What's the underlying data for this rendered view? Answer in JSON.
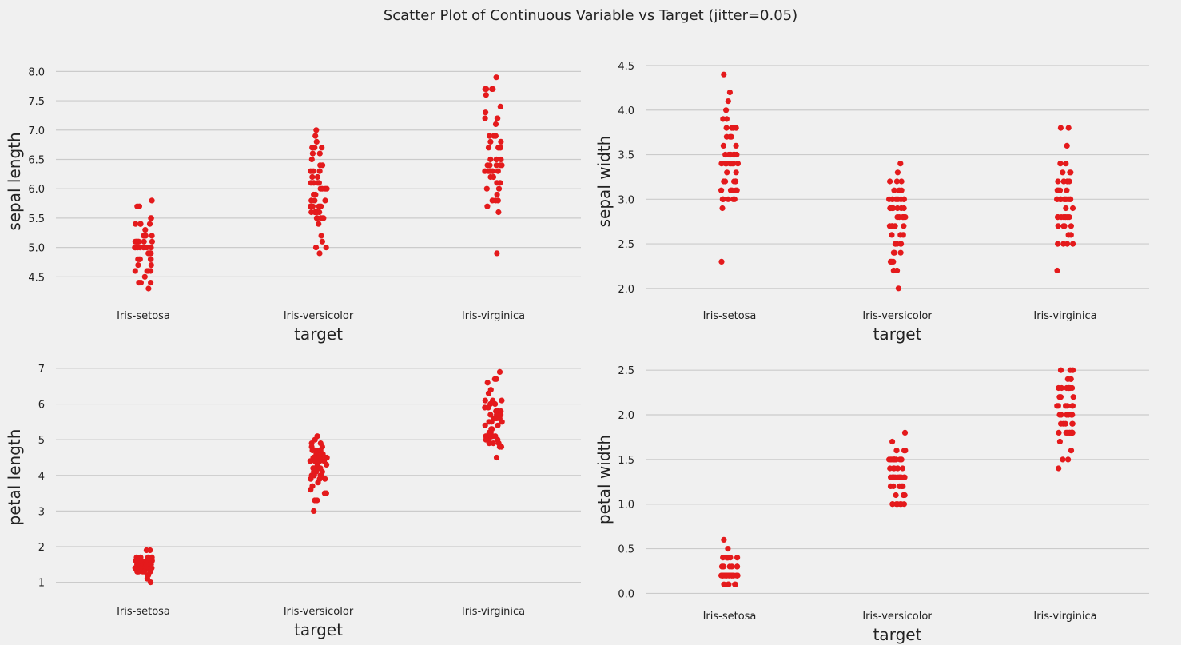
{
  "title": "Scatter Plot of Continuous Variable vs Target (jitter=0.05)",
  "colors": {
    "point": "#e41a1c",
    "background": "#f0f0f0",
    "grid": "#cbcbcb"
  },
  "chart_data": [
    {
      "type": "scatter",
      "xlabel": "target",
      "ylabel": "sepal length",
      "categories": [
        "Iris-setosa",
        "Iris-versicolor",
        "Iris-virginica"
      ],
      "ylim": [
        4.15,
        8.1
      ],
      "yticks": [
        "4.5",
        "5.0",
        "5.5",
        "6.0",
        "6.5",
        "7.0",
        "7.5",
        "8.0"
      ],
      "grid": true,
      "values": [
        [
          5.1,
          4.9,
          4.7,
          4.6,
          5.0,
          5.4,
          4.6,
          5.0,
          4.4,
          4.9,
          5.4,
          4.8,
          4.8,
          4.3,
          5.8,
          5.7,
          5.4,
          5.1,
          5.7,
          5.1,
          5.4,
          5.1,
          4.6,
          5.1,
          4.8,
          5.0,
          5.0,
          5.2,
          5.2,
          4.7,
          4.8,
          5.4,
          5.2,
          5.5,
          4.9,
          5.0,
          5.5,
          4.9,
          4.4,
          5.1,
          5.0,
          4.5,
          4.4,
          5.0,
          5.1,
          4.8,
          5.1,
          4.6,
          5.3,
          5.0
        ],
        [
          7.0,
          6.4,
          6.9,
          5.5,
          6.5,
          5.7,
          6.3,
          4.9,
          6.6,
          5.2,
          5.0,
          5.9,
          6.0,
          6.1,
          5.6,
          6.7,
          5.6,
          5.8,
          6.2,
          5.6,
          5.9,
          6.1,
          6.3,
          6.1,
          6.4,
          6.6,
          6.8,
          6.7,
          6.0,
          5.7,
          5.5,
          5.5,
          5.8,
          6.0,
          5.4,
          6.0,
          6.7,
          6.3,
          5.6,
          5.5,
          5.5,
          6.1,
          5.8,
          5.0,
          5.6,
          5.7,
          5.7,
          6.2,
          5.1,
          5.7
        ],
        [
          6.3,
          5.8,
          7.1,
          6.3,
          6.5,
          7.6,
          4.9,
          7.3,
          6.7,
          7.2,
          6.5,
          6.4,
          6.8,
          5.7,
          5.8,
          6.4,
          6.5,
          7.7,
          7.7,
          6.0,
          6.9,
          5.6,
          7.7,
          6.3,
          6.7,
          7.2,
          6.2,
          6.1,
          6.4,
          7.2,
          7.4,
          7.9,
          6.4,
          6.3,
          6.1,
          7.7,
          6.3,
          6.4,
          6.0,
          6.9,
          6.7,
          6.9,
          5.8,
          6.8,
          6.7,
          6.7,
          6.3,
          6.5,
          6.2,
          5.9
        ]
      ]
    },
    {
      "type": "scatter",
      "xlabel": "target",
      "ylabel": "sepal width",
      "categories": [
        "Iris-setosa",
        "Iris-versicolor",
        "Iris-virginica"
      ],
      "ylim": [
        1.9,
        4.5
      ],
      "yticks": [
        "2.0",
        "2.5",
        "3.0",
        "3.5",
        "4.0",
        "4.5"
      ],
      "grid": true,
      "values": [
        [
          3.5,
          3.0,
          3.2,
          3.1,
          3.6,
          3.9,
          3.4,
          3.4,
          2.9,
          3.1,
          3.7,
          3.4,
          3.0,
          3.0,
          4.0,
          4.4,
          3.9,
          3.5,
          3.8,
          3.8,
          3.4,
          3.7,
          3.6,
          3.3,
          3.4,
          3.0,
          3.4,
          3.5,
          3.4,
          3.2,
          3.1,
          3.4,
          4.1,
          4.2,
          3.1,
          3.2,
          3.5,
          3.1,
          3.0,
          3.4,
          3.5,
          2.3,
          3.2,
          3.5,
          3.8,
          3.0,
          3.8,
          3.2,
          3.7,
          3.3
        ],
        [
          3.2,
          3.2,
          3.1,
          2.3,
          2.8,
          2.8,
          3.3,
          2.4,
          2.9,
          2.7,
          2.0,
          3.0,
          2.2,
          2.9,
          2.9,
          3.1,
          3.0,
          2.7,
          2.2,
          2.5,
          3.2,
          2.8,
          2.5,
          2.8,
          2.9,
          3.0,
          2.8,
          3.0,
          2.9,
          2.6,
          2.4,
          2.4,
          2.7,
          2.7,
          3.0,
          3.4,
          3.1,
          2.3,
          3.0,
          2.5,
          2.6,
          3.0,
          2.6,
          2.3,
          2.7,
          3.0,
          2.9,
          2.9,
          2.5,
          2.8
        ],
        [
          3.3,
          2.7,
          3.0,
          2.9,
          3.0,
          3.0,
          2.5,
          2.9,
          2.5,
          3.6,
          3.2,
          2.7,
          3.0,
          2.5,
          2.8,
          3.2,
          3.0,
          3.8,
          2.6,
          2.2,
          3.2,
          2.8,
          2.8,
          2.7,
          3.3,
          3.2,
          2.8,
          3.0,
          2.8,
          3.0,
          2.8,
          3.8,
          2.8,
          2.8,
          2.6,
          3.0,
          3.4,
          3.1,
          3.0,
          3.1,
          3.1,
          3.1,
          2.7,
          3.2,
          3.3,
          3.0,
          2.5,
          3.0,
          3.4,
          3.0
        ]
      ]
    },
    {
      "type": "scatter",
      "xlabel": "target",
      "ylabel": "petal length",
      "categories": [
        "Iris-setosa",
        "Iris-versicolor",
        "Iris-virginica"
      ],
      "ylim": [
        0.7,
        7.2
      ],
      "yticks": [
        "1",
        "2",
        "3",
        "4",
        "5",
        "6",
        "7"
      ],
      "grid": true,
      "values": [
        [
          1.4,
          1.4,
          1.3,
          1.5,
          1.4,
          1.7,
          1.4,
          1.5,
          1.4,
          1.5,
          1.5,
          1.6,
          1.4,
          1.1,
          1.2,
          1.5,
          1.3,
          1.4,
          1.7,
          1.5,
          1.7,
          1.5,
          1.0,
          1.7,
          1.9,
          1.6,
          1.6,
          1.5,
          1.4,
          1.6,
          1.6,
          1.5,
          1.5,
          1.4,
          1.5,
          1.2,
          1.3,
          1.5,
          1.3,
          1.5,
          1.3,
          1.3,
          1.3,
          1.6,
          1.9,
          1.4,
          1.6,
          1.4,
          1.5,
          1.4
        ],
        [
          4.7,
          4.5,
          4.9,
          4.0,
          4.6,
          4.5,
          4.7,
          3.3,
          4.6,
          3.9,
          3.5,
          4.2,
          4.0,
          4.7,
          3.6,
          4.4,
          4.5,
          4.1,
          4.5,
          3.9,
          4.8,
          4.0,
          4.9,
          4.7,
          4.3,
          4.4,
          4.8,
          5.0,
          4.5,
          3.5,
          3.8,
          3.7,
          3.9,
          5.1,
          4.5,
          4.5,
          4.7,
          4.4,
          4.1,
          4.0,
          4.4,
          4.6,
          4.0,
          3.3,
          4.2,
          4.2,
          4.2,
          4.3,
          3.0,
          4.1
        ],
        [
          6.0,
          5.1,
          5.9,
          5.6,
          5.8,
          6.6,
          4.5,
          6.3,
          5.8,
          6.1,
          5.1,
          5.3,
          5.5,
          5.0,
          5.1,
          5.3,
          5.5,
          6.7,
          6.9,
          5.0,
          5.7,
          4.9,
          6.7,
          4.9,
          5.7,
          6.0,
          4.8,
          4.9,
          5.6,
          5.8,
          6.1,
          6.4,
          5.6,
          5.1,
          5.6,
          6.1,
          5.6,
          5.5,
          4.8,
          5.4,
          5.6,
          5.1,
          5.1,
          5.9,
          5.7,
          5.2,
          5.0,
          5.2,
          5.4,
          5.1
        ]
      ]
    },
    {
      "type": "scatter",
      "xlabel": "target",
      "ylabel": "petal width",
      "categories": [
        "Iris-setosa",
        "Iris-versicolor",
        "Iris-virginica"
      ],
      "ylim": [
        -0.05,
        2.6
      ],
      "yticks": [
        "0.0",
        "0.5",
        "1.0",
        "1.5",
        "2.0",
        "2.5"
      ],
      "grid": true,
      "values": [
        [
          0.2,
          0.2,
          0.2,
          0.2,
          0.2,
          0.4,
          0.3,
          0.2,
          0.2,
          0.1,
          0.2,
          0.2,
          0.1,
          0.1,
          0.2,
          0.4,
          0.4,
          0.3,
          0.3,
          0.3,
          0.2,
          0.4,
          0.2,
          0.5,
          0.2,
          0.2,
          0.4,
          0.2,
          0.2,
          0.2,
          0.2,
          0.4,
          0.1,
          0.2,
          0.1,
          0.2,
          0.2,
          0.1,
          0.2,
          0.2,
          0.3,
          0.3,
          0.2,
          0.6,
          0.4,
          0.3,
          0.2,
          0.2,
          0.2,
          0.2
        ],
        [
          1.4,
          1.5,
          1.5,
          1.3,
          1.5,
          1.3,
          1.6,
          1.0,
          1.3,
          1.4,
          1.0,
          1.5,
          1.0,
          1.4,
          1.3,
          1.4,
          1.5,
          1.0,
          1.5,
          1.1,
          1.8,
          1.3,
          1.5,
          1.2,
          1.3,
          1.4,
          1.4,
          1.7,
          1.5,
          1.0,
          1.1,
          1.0,
          1.2,
          1.6,
          1.5,
          1.6,
          1.5,
          1.3,
          1.3,
          1.3,
          1.2,
          1.4,
          1.2,
          1.0,
          1.3,
          1.2,
          1.3,
          1.3,
          1.1,
          1.3
        ],
        [
          2.5,
          1.9,
          2.1,
          1.8,
          2.2,
          2.1,
          1.7,
          1.8,
          1.8,
          2.5,
          2.0,
          1.9,
          2.1,
          2.0,
          2.4,
          2.3,
          1.8,
          2.2,
          2.3,
          1.5,
          2.3,
          2.0,
          2.0,
          1.8,
          2.1,
          1.8,
          1.8,
          1.8,
          2.1,
          1.6,
          1.9,
          2.0,
          2.2,
          1.5,
          1.4,
          2.3,
          2.4,
          1.8,
          1.8,
          2.1,
          2.4,
          2.3,
          1.9,
          2.3,
          2.5,
          2.3,
          1.9,
          2.0,
          2.3,
          1.8
        ]
      ]
    }
  ]
}
